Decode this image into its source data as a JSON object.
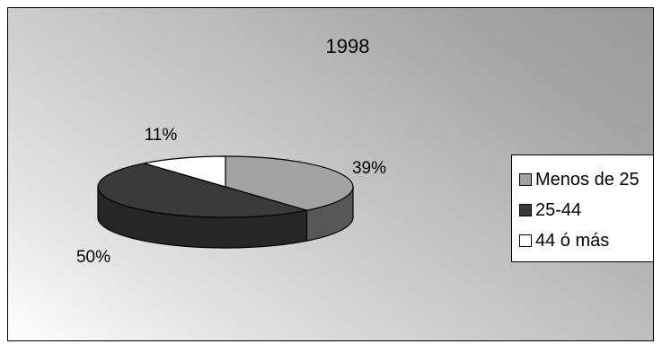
{
  "chart_data": {
    "type": "pie",
    "title": "1998",
    "categories": [
      "Menos de 25",
      "25-44",
      "44 ó más"
    ],
    "values": [
      39,
      50,
      11
    ],
    "value_labels": [
      "39%",
      "50%",
      "11%"
    ],
    "colors": [
      "#a3a3a3",
      "#3a3a3a",
      "#ffffff"
    ],
    "side_colors": [
      "#575757",
      "#262626",
      "#dcdcdc"
    ],
    "legend_position": "right",
    "style": "3d-pie"
  }
}
